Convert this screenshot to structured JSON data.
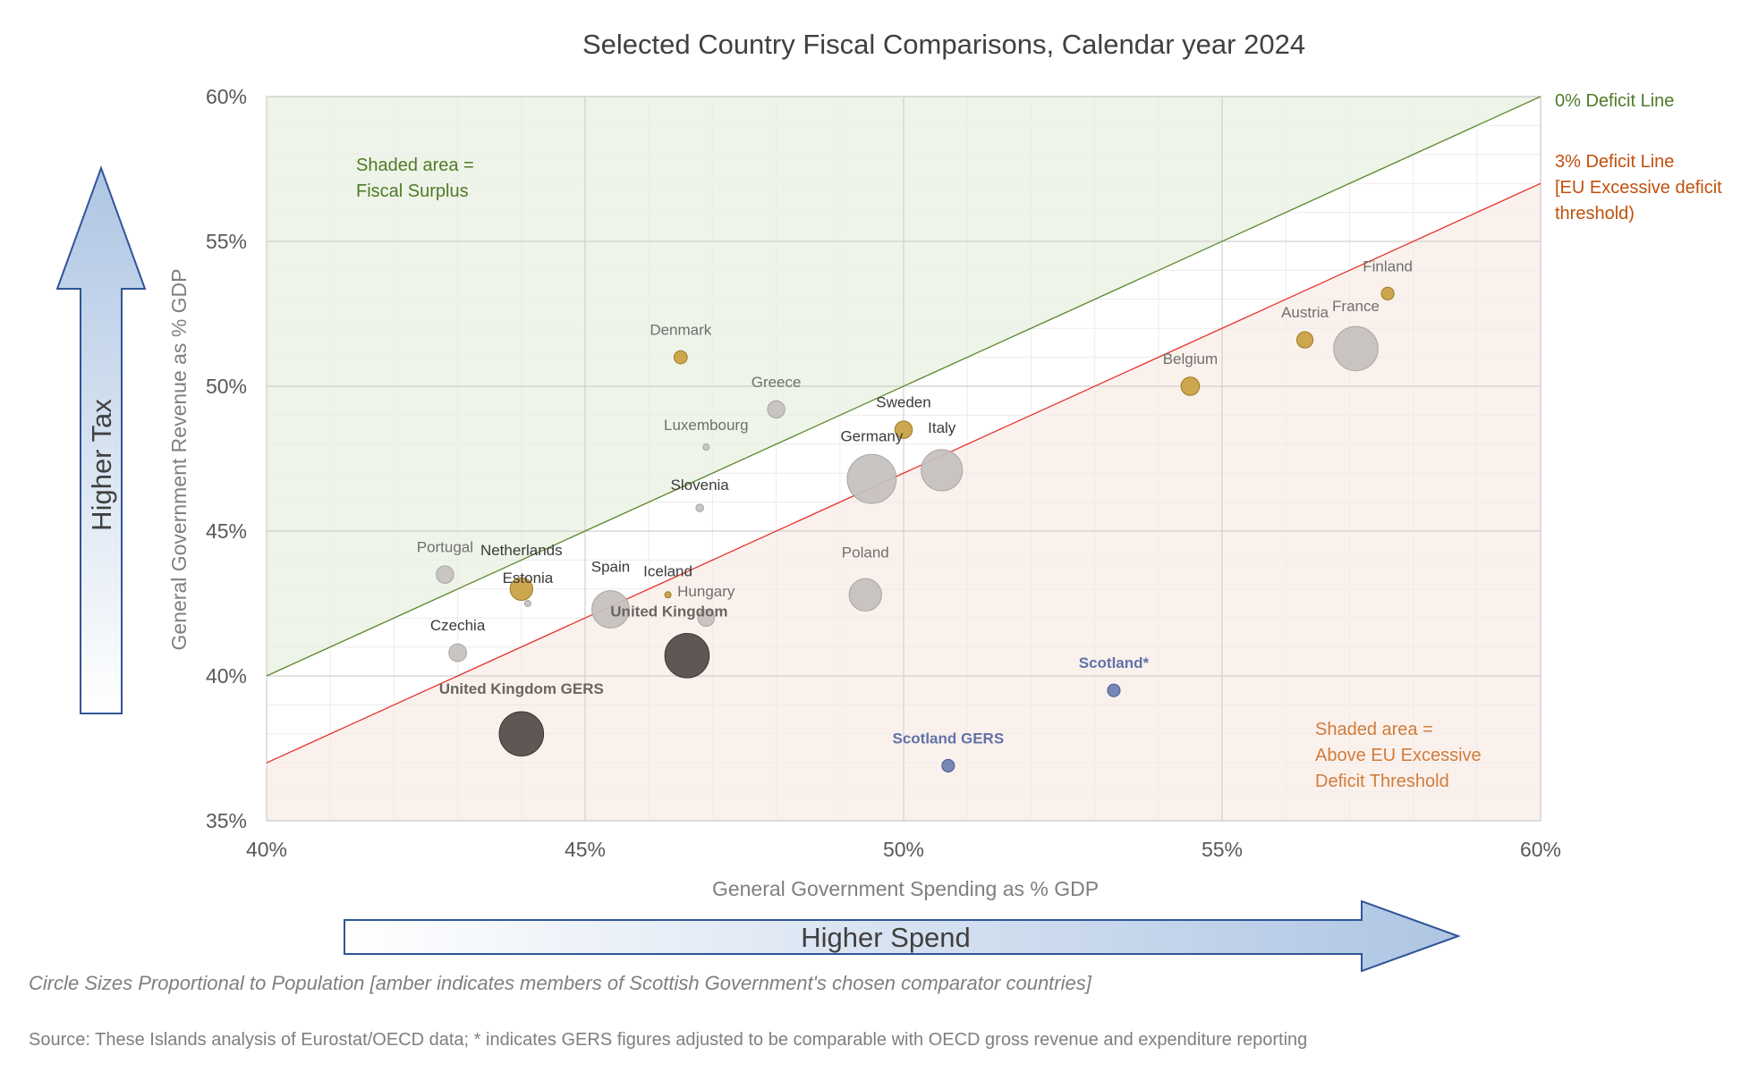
{
  "chart_data": {
    "type": "scatter",
    "title": "Selected Country Fiscal Comparisons, Calendar year 2024",
    "xlabel": "General Government Spending as % GDP",
    "ylabel": "General Government Revenue as % GDP",
    "xlim": [
      40,
      60
    ],
    "ylim": [
      35,
      60
    ],
    "x_ticks": [
      "40%",
      "45%",
      "50%",
      "55%",
      "60%"
    ],
    "y_ticks": [
      "35%",
      "40%",
      "45%",
      "50%",
      "55%",
      "60%"
    ],
    "grid": true,
    "bubble_size_meaning": "population",
    "reference_lines": [
      {
        "name": "0% Deficit Line",
        "label_lines": [
          "0% Deficit Line"
        ],
        "offset": 0,
        "color": "#5c8a2f"
      },
      {
        "name": "3% Deficit Line",
        "label_lines": [
          "3% Deficit Line",
          "[EU Excessive deficit",
          "threshold)"
        ],
        "offset": -3,
        "color": "#e8312c"
      }
    ],
    "points": [
      {
        "name": "Finland",
        "x": 57.6,
        "y": 53.2,
        "population": 5.6,
        "category": "comparator"
      },
      {
        "name": "France",
        "x": 57.1,
        "y": 51.3,
        "population": 68.4,
        "category": "other"
      },
      {
        "name": "Austria",
        "x": 56.3,
        "y": 51.6,
        "population": 9.2,
        "category": "comparator"
      },
      {
        "name": "Belgium",
        "x": 54.5,
        "y": 50.0,
        "population": 11.8,
        "category": "comparator"
      },
      {
        "name": "Denmark",
        "x": 46.5,
        "y": 51.0,
        "population": 6.0,
        "category": "comparator"
      },
      {
        "name": "Greece",
        "x": 48.0,
        "y": 49.2,
        "population": 10.4,
        "category": "other"
      },
      {
        "name": "Sweden",
        "x": 50.0,
        "y": 48.5,
        "population": 10.6,
        "category": "comparator"
      },
      {
        "name": "Luxembourg",
        "x": 46.9,
        "y": 47.9,
        "population": 0.7,
        "category": "other"
      },
      {
        "name": "Germany",
        "x": 49.5,
        "y": 46.8,
        "population": 83.5,
        "category": "other"
      },
      {
        "name": "Italy",
        "x": 50.6,
        "y": 47.1,
        "population": 59.0,
        "category": "other"
      },
      {
        "name": "Slovenia",
        "x": 46.8,
        "y": 45.8,
        "population": 2.1,
        "category": "other"
      },
      {
        "name": "Portugal",
        "x": 42.8,
        "y": 43.5,
        "population": 10.6,
        "category": "other"
      },
      {
        "name": "Netherlands",
        "x": 44.0,
        "y": 43.0,
        "population": 17.9,
        "category": "comparator"
      },
      {
        "name": "Estonia",
        "x": 44.1,
        "y": 42.5,
        "population": 1.4,
        "category": "other"
      },
      {
        "name": "Spain",
        "x": 45.4,
        "y": 42.3,
        "population": 48.6,
        "category": "other"
      },
      {
        "name": "Iceland",
        "x": 46.3,
        "y": 42.8,
        "population": 0.4,
        "category": "comparator"
      },
      {
        "name": "Hungary",
        "x": 46.9,
        "y": 42.0,
        "population": 9.6,
        "category": "other"
      },
      {
        "name": "Poland",
        "x": 49.4,
        "y": 42.8,
        "population": 36.6,
        "category": "other"
      },
      {
        "name": "Czechia",
        "x": 43.0,
        "y": 40.8,
        "population": 10.9,
        "category": "other"
      },
      {
        "name": "United Kingdom",
        "x": 46.6,
        "y": 40.7,
        "population": 68.3,
        "category": "uk"
      },
      {
        "name": "United Kingdom GERS",
        "x": 44.0,
        "y": 38.0,
        "population": 68.3,
        "category": "uk"
      },
      {
        "name": "Scotland*",
        "x": 53.3,
        "y": 39.5,
        "population": 5.5,
        "category": "scotland"
      },
      {
        "name": "Scotland GERS",
        "x": 50.7,
        "y": 36.9,
        "population": 5.5,
        "category": "scotland"
      }
    ],
    "annotations": {
      "surplus_lines": [
        "Shaded area =",
        "Fiscal Surplus"
      ],
      "excessive_lines": [
        "Shaded area =",
        "Above EU Excessive",
        "Deficit Threshold"
      ]
    }
  },
  "arrows": {
    "vertical_label": "Higher Tax",
    "horizontal_label": "Higher Spend"
  },
  "notes": {
    "circle_note": "Circle Sizes Proportional to Population [amber indicates members of Scottish Government's chosen  comparator countries]",
    "source": "Source: These Islands analysis of Eurostat/OECD data; * indicates GERS figures adjusted to be comparable with OECD gross revenue and expenditure reporting"
  },
  "colors": {
    "comparator": "#c9a040",
    "other": "#c4c0be",
    "uk": "#504a47",
    "scotland": "#6b7fb2",
    "surplus_shade": "#eef4e8",
    "excessive_shade": "#fbf1ec"
  }
}
